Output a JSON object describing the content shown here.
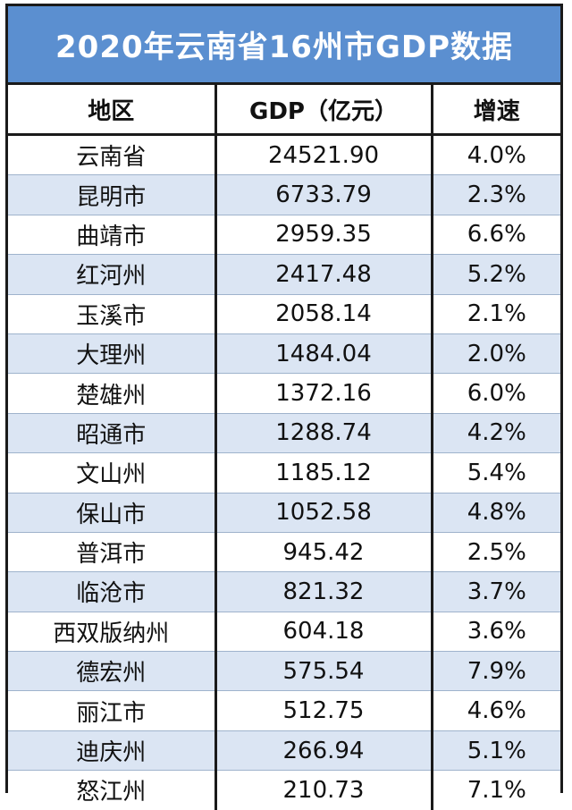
{
  "title": "2020年云南省16州市GDP数据",
  "headers": {
    "region": "地区",
    "gdp": "GDP（亿元）",
    "growth": "增速"
  },
  "rows": [
    {
      "region": "云南省",
      "gdp": "24521.90",
      "growth": "4.0%"
    },
    {
      "region": "昆明市",
      "gdp": "6733.79",
      "growth": "2.3%"
    },
    {
      "region": "曲靖市",
      "gdp": "2959.35",
      "growth": "6.6%"
    },
    {
      "region": "红河州",
      "gdp": "2417.48",
      "growth": "5.2%"
    },
    {
      "region": "玉溪市",
      "gdp": "2058.14",
      "growth": "2.1%"
    },
    {
      "region": "大理州",
      "gdp": "1484.04",
      "growth": "2.0%"
    },
    {
      "region": "楚雄州",
      "gdp": "1372.16",
      "growth": "6.0%"
    },
    {
      "region": "昭通市",
      "gdp": "1288.74",
      "growth": "4.2%"
    },
    {
      "region": "文山州",
      "gdp": "1185.12",
      "growth": "5.4%"
    },
    {
      "region": "保山市",
      "gdp": "1052.58",
      "growth": "4.8%"
    },
    {
      "region": "普洱市",
      "gdp": "945.42",
      "growth": "2.5%"
    },
    {
      "region": "临沧市",
      "gdp": "821.32",
      "growth": "3.7%"
    },
    {
      "region": "西双版纳州",
      "gdp": "604.18",
      "growth": "3.6%"
    },
    {
      "region": "德宏州",
      "gdp": "575.54",
      "growth": "7.9%"
    },
    {
      "region": "丽江市",
      "gdp": "512.75",
      "growth": "4.6%"
    },
    {
      "region": "迪庆州",
      "gdp": "266.94",
      "growth": "5.1%"
    },
    {
      "region": "怒江州",
      "gdp": "210.73",
      "growth": "7.1%"
    }
  ],
  "colors": {
    "header_bg": "#5b8fd0",
    "stripe": "#dbe5f3",
    "border": "#1a1a1a"
  }
}
